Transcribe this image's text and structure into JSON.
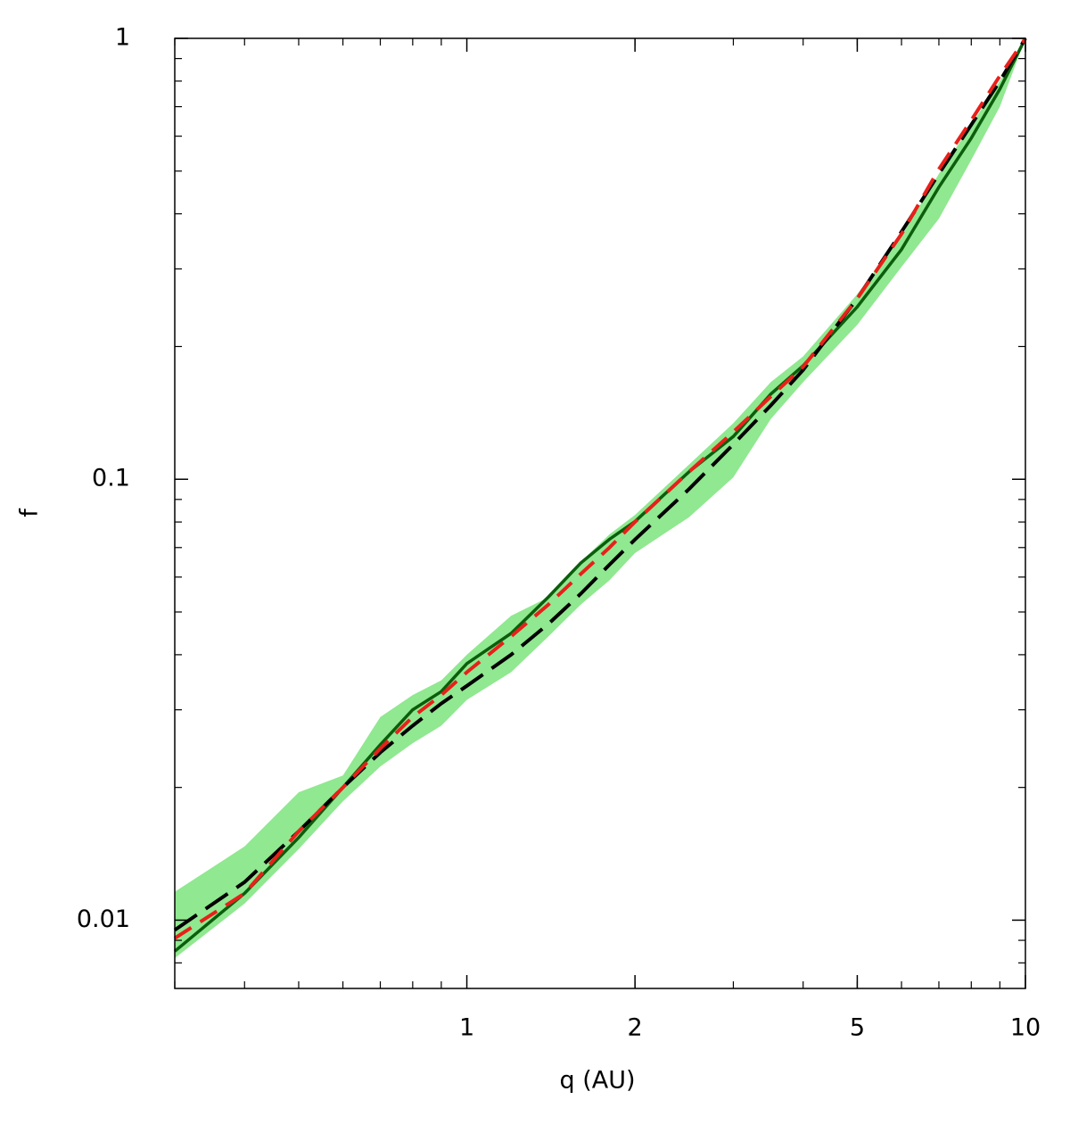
{
  "chart_data": {
    "type": "line",
    "xlabel": "q (AU)",
    "ylabel": "f",
    "xlog": true,
    "ylog": true,
    "xlim": [
      0.3,
      10
    ],
    "ylim": [
      0.007,
      1
    ],
    "xticks": [
      1,
      2,
      5,
      10
    ],
    "yticks": [
      0.01,
      0.1,
      1
    ],
    "x": [
      0.3,
      0.4,
      0.5,
      0.6,
      0.7,
      0.8,
      0.9,
      1.0,
      1.2,
      1.4,
      1.6,
      1.8,
      2,
      2.5,
      3,
      3.5,
      4,
      5,
      6,
      7,
      8,
      9,
      10
    ],
    "series": [
      {
        "color": "#90e890",
        "kind": "band",
        "upper": [
          0.0116,
          0.0147,
          0.0195,
          0.0213,
          0.0289,
          0.0324,
          0.035,
          0.04,
          0.049,
          0.054,
          0.065,
          0.075,
          0.083,
          0.108,
          0.134,
          0.166,
          0.19,
          0.263,
          0.356,
          0.493,
          0.637,
          0.8,
          1
        ],
        "lower": [
          0.0082,
          0.0109,
          0.0145,
          0.0186,
          0.0223,
          0.0252,
          0.0276,
          0.0316,
          0.0365,
          0.044,
          0.052,
          0.059,
          0.068,
          0.082,
          0.101,
          0.137,
          0.166,
          0.224,
          0.303,
          0.39,
          0.53,
          0.7,
          1
        ]
      },
      {
        "color": "#0b5e0b",
        "kind": "solid",
        "values": [
          0.0085,
          0.0115,
          0.0154,
          0.02,
          0.025,
          0.03,
          0.033,
          0.0382,
          0.0447,
          0.0541,
          0.0646,
          0.0731,
          0.0802,
          0.104,
          0.125,
          0.156,
          0.181,
          0.246,
          0.332,
          0.46,
          0.594,
          0.767,
          1
        ]
      },
      {
        "color": "#000000",
        "kind": "dashed",
        "values": [
          0.0095,
          0.0122,
          0.0159,
          0.02,
          0.024,
          0.0276,
          0.031,
          0.034,
          0.04,
          0.047,
          0.055,
          0.064,
          0.073,
          0.095,
          0.12,
          0.147,
          0.177,
          0.257,
          0.364,
          0.493,
          0.637,
          0.8,
          1
        ]
      },
      {
        "color": "#e8201a",
        "kind": "dashed",
        "values": [
          0.0091,
          0.0115,
          0.0159,
          0.02,
          0.0245,
          0.0289,
          0.0324,
          0.0365,
          0.044,
          0.052,
          0.061,
          0.07,
          0.08,
          0.104,
          0.128,
          0.154,
          0.18,
          0.257,
          0.36,
          0.505,
          0.652,
          0.822,
          1
        ]
      }
    ]
  }
}
